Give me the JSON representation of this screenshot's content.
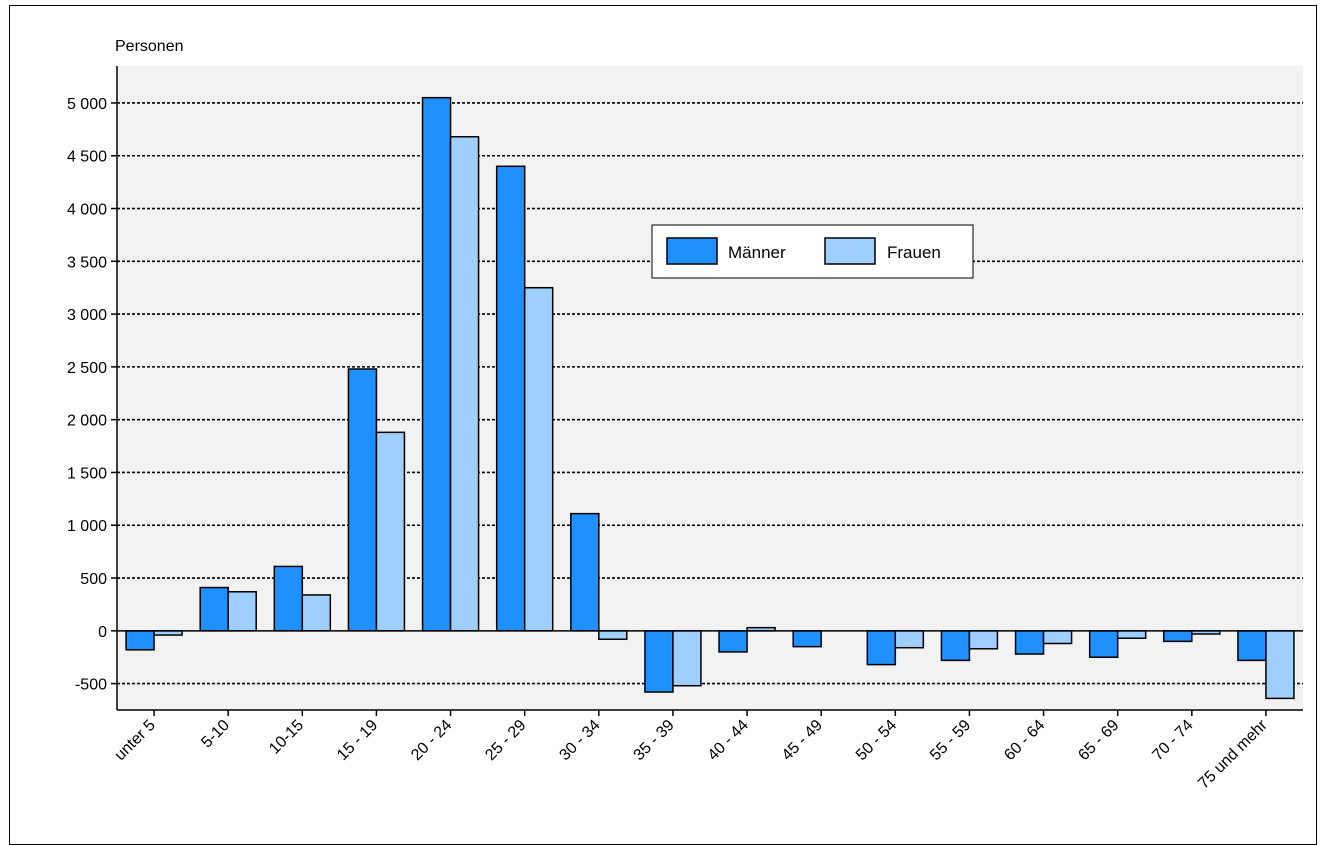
{
  "chart_data": {
    "type": "bar",
    "ylabel": "Personen",
    "ylim": [
      -750,
      5350
    ],
    "yticks": [
      -500,
      0,
      500,
      1000,
      1500,
      2000,
      2500,
      3000,
      3500,
      4000,
      4500,
      5000
    ],
    "ytick_labels": [
      "-500",
      "0",
      "500",
      "1 000",
      "1 500",
      "2 000",
      "2 500",
      "3 000",
      "3 500",
      "4 000",
      "4 500",
      "5 000"
    ],
    "grid": true,
    "legend_position": "top-center",
    "categories": [
      "unter 5",
      "5-10",
      "10-15",
      "15 - 19",
      "20 - 24",
      "25 - 29",
      "30 - 34",
      "35 - 39",
      "40 - 44",
      "45 - 49",
      "50 - 54",
      "55 - 59",
      "60 - 64",
      "65 - 69",
      "70 - 74",
      "75 und mehr"
    ],
    "series": [
      {
        "name": "Männer",
        "color": "#1e90ff",
        "values": [
          -180,
          410,
          610,
          2480,
          5050,
          4400,
          1110,
          -580,
          -200,
          -150,
          -320,
          -280,
          -220,
          -250,
          -100,
          -280
        ]
      },
      {
        "name": "Frauen",
        "color": "#9fcfff",
        "values": [
          -40,
          370,
          340,
          1880,
          4680,
          3250,
          -80,
          -520,
          30,
          0,
          -160,
          -170,
          -120,
          -70,
          -30,
          -640
        ]
      }
    ]
  }
}
